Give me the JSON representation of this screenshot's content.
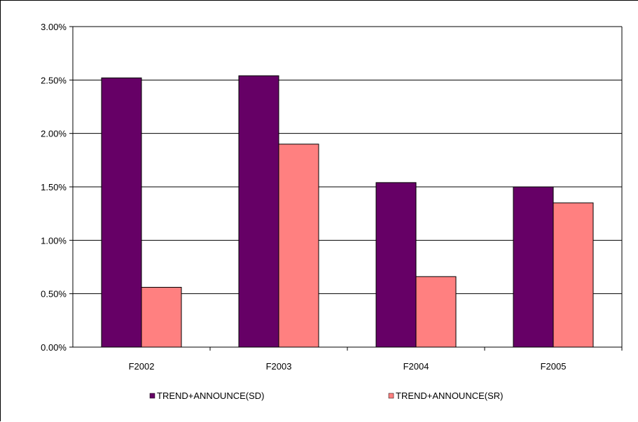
{
  "chart_data": {
    "type": "bar",
    "categories": [
      "F2002",
      "F2003",
      "F2004",
      "F2005"
    ],
    "series": [
      {
        "name": "TREND+ANNOUNCE(SD)",
        "values": [
          2.52,
          2.54,
          1.54,
          1.5
        ],
        "color": "#660066"
      },
      {
        "name": "TREND+ANNOUNCE(SR)",
        "values": [
          0.56,
          1.9,
          0.66,
          1.35
        ],
        "color": "#ff8080"
      }
    ],
    "y_ticks": [
      "0.00%",
      "0.50%",
      "1.00%",
      "1.50%",
      "2.00%",
      "2.50%",
      "3.00%"
    ],
    "ylim": [
      0,
      3
    ],
    "unit": "%",
    "grid": true,
    "legend_position": "bottom",
    "title": "",
    "xlabel": "",
    "ylabel": ""
  }
}
